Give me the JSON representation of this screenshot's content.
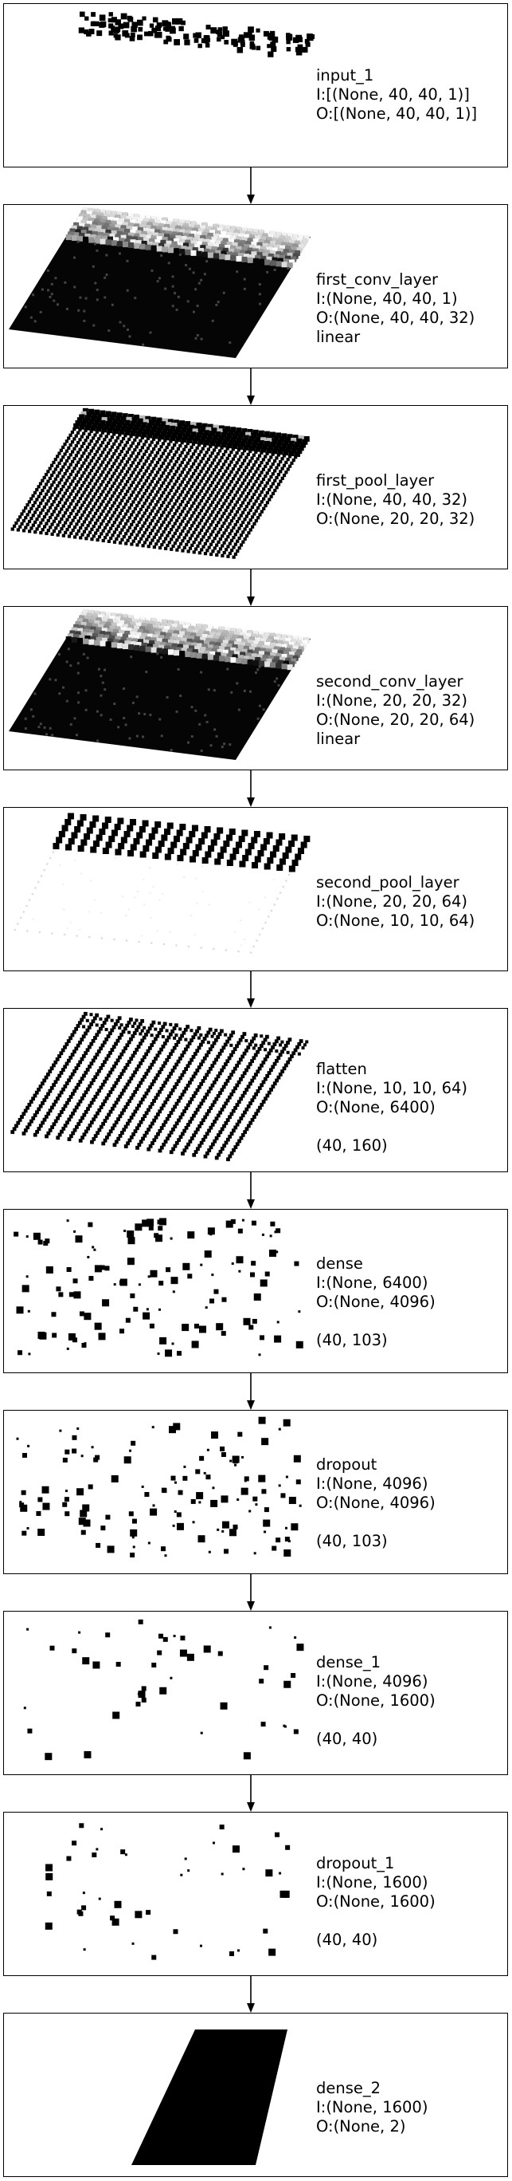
{
  "colors": {
    "ink": "#000000",
    "paper": "#ffffff",
    "frame": "#000000"
  },
  "layers": [
    {
      "name": "input_1",
      "input": "I:[(None, 40, 40, 1)]",
      "output": "O:[(None, 40, 40, 1)]",
      "extra": "",
      "shape": "",
      "visual": "sparse-strip"
    },
    {
      "name": "first_conv_layer",
      "input": "I:(None, 40, 40, 1)",
      "output": "O:(None, 40, 40, 32)",
      "extra": "linear",
      "shape": "",
      "visual": "dense-grid-bright-back"
    },
    {
      "name": "first_pool_layer",
      "input": "I:(None, 40, 40, 32)",
      "output": "O:(None, 20, 20, 32)",
      "extra": "",
      "shape": "",
      "visual": "dot-grid"
    },
    {
      "name": "second_conv_layer",
      "input": "I:(None, 20, 20, 32)",
      "output": "O:(None, 20, 20, 64)",
      "extra": "linear",
      "shape": "",
      "visual": "dense-grid-bright-back"
    },
    {
      "name": "second_pool_layer",
      "input": "I:(None, 20, 20, 64)",
      "output": "O:(None, 10, 10, 64)",
      "extra": "",
      "shape": "",
      "visual": "partial-grid"
    },
    {
      "name": "flatten",
      "input": "I:(None, 10, 10, 64)",
      "output": "O:(None, 6400)",
      "extra": "",
      "shape": "(40, 160)",
      "visual": "stripe-grid"
    },
    {
      "name": "dense",
      "input": "I:(None, 6400)",
      "output": "O:(None, 4096)",
      "extra": "",
      "shape": "(40, 103)",
      "visual": "scatter"
    },
    {
      "name": "dropout",
      "input": "I:(None, 4096)",
      "output": "O:(None, 4096)",
      "extra": "",
      "shape": "(40, 103)",
      "visual": "scatter"
    },
    {
      "name": "dense_1",
      "input": "I:(None, 4096)",
      "output": "O:(None, 1600)",
      "extra": "",
      "shape": "(40, 40)",
      "visual": "scatter-sparse"
    },
    {
      "name": "dropout_1",
      "input": "I:(None, 1600)",
      "output": "O:(None, 1600)",
      "extra": "",
      "shape": "(40, 40)",
      "visual": "scatter-sparse"
    },
    {
      "name": "dense_2",
      "input": "I:(None, 1600)",
      "output": "O:(None, 2)",
      "extra": "",
      "shape": "",
      "visual": "solid-slab"
    }
  ]
}
